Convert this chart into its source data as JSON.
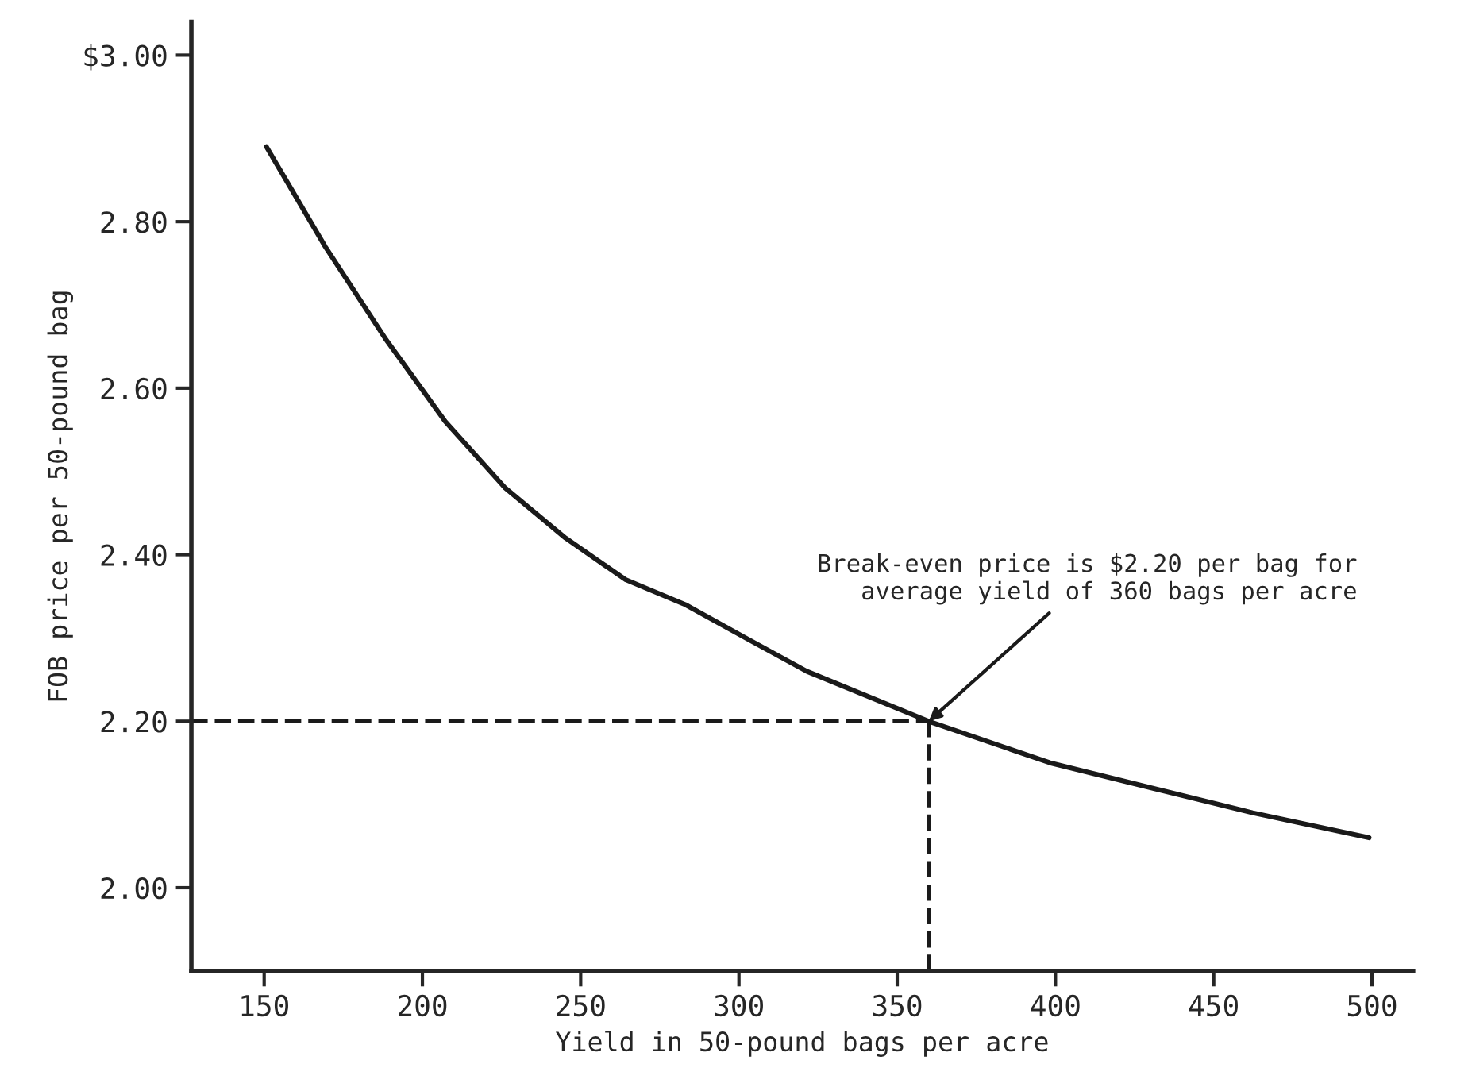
{
  "chart_data": {
    "type": "line",
    "xlabel": "Yield in 50-pound bags per acre",
    "ylabel": "FOB price per 50-pound bag",
    "x": [
      150.7,
      169.3,
      188.2,
      207.2,
      226.2,
      245.2,
      264.2,
      283.1,
      302.1,
      321.4,
      359.9,
      398.3,
      430.3,
      462.3,
      499.1
    ],
    "series": [
      {
        "color": "#1a1a1a",
        "values": [
          2.89,
          2.77,
          2.66,
          2.56,
          2.48,
          2.42,
          2.37,
          2.34,
          2.3,
          2.26,
          2.2,
          2.15,
          2.12,
          2.09,
          2.06
        ]
      }
    ],
    "xlim": [
      127,
      513
    ],
    "ylim": [
      1.9,
      3.04
    ],
    "xticks": [
      150,
      200,
      250,
      300,
      350,
      400,
      450,
      500
    ],
    "yticks": [
      {
        "value": 3.0,
        "label": "$3.00"
      },
      {
        "value": 2.8,
        "label": "2.80"
      },
      {
        "value": 2.6,
        "label": "2.60"
      },
      {
        "value": 2.4,
        "label": "2.40"
      },
      {
        "value": 2.2,
        "label": "2.20"
      },
      {
        "value": 2.0,
        "label": "2.00"
      }
    ],
    "ref_lines": [
      {
        "axis": "y",
        "value": 2.2,
        "line_style": "dashed",
        "color": "#1a1a1a"
      },
      {
        "axis": "x",
        "value": 360,
        "line_style": "dashed",
        "color": "#1a1a1a"
      }
    ],
    "annotations": [
      {
        "text": "Break-even price is $2.20 per bag for\naverage yield of 360 bags per acre",
        "x": 360,
        "y": 2.2
      }
    ],
    "grid": false,
    "legend": false,
    "marker": "none",
    "line_style": "solid"
  }
}
